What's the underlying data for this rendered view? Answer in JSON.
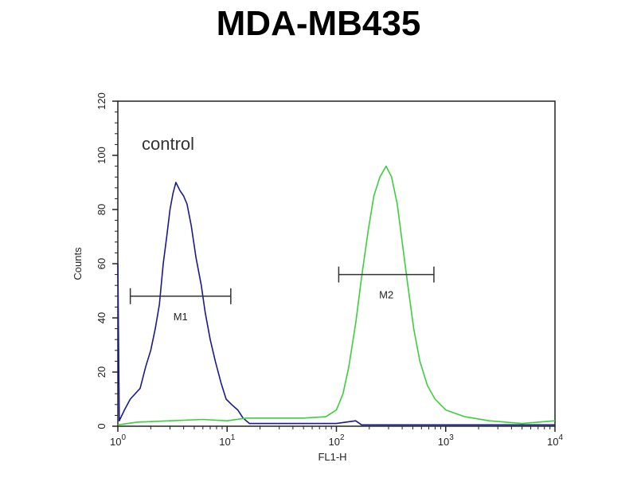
{
  "chart_data": {
    "type": "line",
    "title": "MDA-MB435",
    "xlabel": "FL1-H",
    "ylabel": "Counts",
    "x_scale": "log",
    "xlim": [
      1,
      10000
    ],
    "ylim": [
      0,
      120
    ],
    "x_ticks": [
      {
        "base": "10",
        "exp": "0"
      },
      {
        "base": "10",
        "exp": "1"
      },
      {
        "base": "10",
        "exp": "2"
      },
      {
        "base": "10",
        "exp": "3"
      },
      {
        "base": "10",
        "exp": "4"
      }
    ],
    "y_ticks": [
      "0",
      "20",
      "40",
      "60",
      "80",
      "100",
      "120"
    ],
    "annotation": "control",
    "series": [
      {
        "color": "#1a1a8c",
        "points": [
          [
            1.0,
            60
          ],
          [
            1.03,
            2
          ],
          [
            1.15,
            6
          ],
          [
            1.3,
            10
          ],
          [
            1.6,
            14
          ],
          [
            1.8,
            22
          ],
          [
            2.0,
            28
          ],
          [
            2.2,
            36
          ],
          [
            2.4,
            45
          ],
          [
            2.6,
            60
          ],
          [
            2.8,
            70
          ],
          [
            3.0,
            80
          ],
          [
            3.2,
            86
          ],
          [
            3.4,
            90
          ],
          [
            3.7,
            87
          ],
          [
            4.0,
            85
          ],
          [
            4.3,
            82
          ],
          [
            4.7,
            74
          ],
          [
            5.2,
            62
          ],
          [
            5.8,
            52
          ],
          [
            6.3,
            42
          ],
          [
            7.0,
            32
          ],
          [
            7.8,
            24
          ],
          [
            8.8,
            16
          ],
          [
            9.8,
            10
          ],
          [
            11,
            8
          ],
          [
            12.5,
            6
          ],
          [
            14,
            3
          ],
          [
            16,
            1
          ],
          [
            25,
            1
          ],
          [
            50,
            1
          ],
          [
            100,
            1
          ],
          [
            150,
            2
          ],
          [
            170,
            0.5
          ],
          [
            1000,
            0.5
          ],
          [
            10000,
            0.5
          ]
        ]
      },
      {
        "color": "#3ccf3c",
        "points": [
          [
            1.0,
            0.5
          ],
          [
            1.5,
            1.5
          ],
          [
            3,
            2
          ],
          [
            6,
            2.5
          ],
          [
            10,
            2
          ],
          [
            15,
            3
          ],
          [
            25,
            3
          ],
          [
            50,
            3
          ],
          [
            80,
            3.5
          ],
          [
            100,
            6
          ],
          [
            115,
            12
          ],
          [
            130,
            22
          ],
          [
            150,
            38
          ],
          [
            170,
            55
          ],
          [
            195,
            72
          ],
          [
            220,
            85
          ],
          [
            250,
            92
          ],
          [
            285,
            96
          ],
          [
            320,
            92
          ],
          [
            360,
            82
          ],
          [
            400,
            68
          ],
          [
            450,
            52
          ],
          [
            510,
            36
          ],
          [
            580,
            24
          ],
          [
            680,
            15
          ],
          [
            800,
            10
          ],
          [
            1000,
            6
          ],
          [
            1500,
            3.5
          ],
          [
            2500,
            2
          ],
          [
            5000,
            1
          ],
          [
            10000,
            2
          ]
        ]
      }
    ],
    "markers": [
      {
        "label": "M1",
        "range": [
          1.3,
          10.8
        ],
        "y": 48
      },
      {
        "label": "M2",
        "range": [
          105,
          780
        ],
        "y": 56
      }
    ],
    "grid": false,
    "legend": "none"
  }
}
